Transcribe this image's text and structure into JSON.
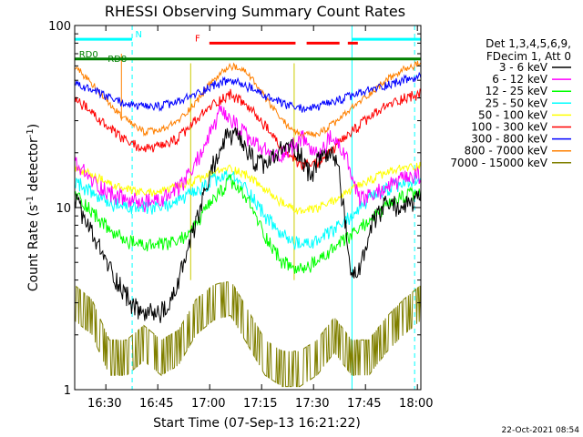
{
  "chart_data": {
    "type": "line",
    "title": "RHESSI Observing Summary Count Rates",
    "xlabel": "Start Time (07-Sep-13 16:21:22)",
    "ylabel": "Count Rate (s^-1 detector^-1)",
    "ylabel_main": "Count Rate (s",
    "ylabel_sup1": "-1",
    "ylabel_mid": " detector",
    "ylabel_sup2": "-1",
    "ylabel_end": ")",
    "yscale": "log",
    "ylim": [
      1,
      100
    ],
    "xlim_minutes": [
      0,
      100
    ],
    "x_tick_minutes": [
      8.63,
      23.63,
      38.63,
      53.63,
      68.63,
      83.63,
      98.63
    ],
    "x_tick_labels": [
      "16:30",
      "16:45",
      "17:00",
      "17:15",
      "17:30",
      "17:45",
      "18:00"
    ],
    "y_tick_values": [
      1,
      10,
      100
    ],
    "y_tick_labels": [
      "1",
      "10",
      "100"
    ],
    "legend_header": [
      "Det 1,3,4,5,6,9,",
      "FDecim 1, Att 0"
    ],
    "series": [
      {
        "name": "3 - 6 keV",
        "color": "#000000",
        "noise": 0.06,
        "x": [
          0,
          3,
          7,
          12,
          18,
          22,
          27,
          30,
          35,
          40,
          44,
          47,
          50,
          53,
          56,
          59,
          62,
          65,
          68,
          72,
          76,
          80,
          83,
          86,
          90,
          94,
          97,
          100
        ],
        "y": [
          11,
          8.5,
          6,
          4,
          2.7,
          2.6,
          2.7,
          4,
          8,
          17,
          25,
          24,
          20,
          17,
          17.5,
          20,
          22,
          20,
          15,
          20,
          18,
          4,
          5,
          8,
          10.5,
          10,
          10.5,
          11
        ]
      },
      {
        "name": "6 - 12 keV",
        "color": "#ff00ff",
        "noise": 0.05,
        "x": [
          0,
          5,
          10,
          15,
          20,
          25,
          30,
          34,
          38,
          42,
          46,
          50,
          54,
          58,
          62,
          66,
          70,
          74,
          78,
          82,
          86,
          90,
          94,
          100
        ],
        "y": [
          17.5,
          14,
          12,
          11,
          10.5,
          11,
          12.5,
          16,
          23,
          33,
          29,
          24,
          21,
          19,
          21,
          24,
          19,
          24,
          20,
          11,
          11.5,
          13,
          14,
          15
        ]
      },
      {
        "name": "12 - 25 keV",
        "color": "#00ff00",
        "noise": 0.04,
        "x": [
          0,
          5,
          10,
          15,
          20,
          25,
          30,
          35,
          40,
          45,
          50,
          55,
          60,
          65,
          70,
          75,
          80,
          85,
          90,
          95,
          100
        ],
        "y": [
          12,
          9.5,
          7.5,
          6.5,
          6.2,
          6.2,
          6.5,
          8,
          11,
          14,
          11,
          7,
          5,
          4.5,
          5,
          6,
          7,
          8.5,
          10,
          11.5,
          12
        ]
      },
      {
        "name": "25 - 50 keV",
        "color": "#00ffff",
        "noise": 0.04,
        "x": [
          0,
          5,
          10,
          15,
          20,
          25,
          30,
          35,
          40,
          45,
          50,
          55,
          60,
          65,
          70,
          75,
          80,
          85,
          90,
          95,
          100
        ],
        "y": [
          14,
          12,
          10.5,
          10,
          9.8,
          10,
          11,
          12,
          14,
          15,
          12.5,
          9,
          7,
          6.2,
          6.5,
          7.5,
          9,
          11,
          12.5,
          13.5,
          14
        ]
      },
      {
        "name": "50 - 100 keV",
        "color": "#ffff00",
        "noise": 0.025,
        "x": [
          0,
          5,
          10,
          15,
          20,
          25,
          30,
          35,
          40,
          45,
          50,
          55,
          60,
          65,
          70,
          75,
          80,
          85,
          90,
          95,
          100
        ],
        "y": [
          16.5,
          15,
          13.5,
          12.5,
          12,
          12.3,
          13,
          14,
          15.5,
          16.5,
          15,
          12.5,
          10.5,
          9.5,
          9.8,
          11,
          12.5,
          14,
          15.5,
          16.5,
          17
        ]
      },
      {
        "name": "100 - 300 keV",
        "color": "#ff0000",
        "noise": 0.03,
        "x": [
          0,
          5,
          10,
          15,
          20,
          25,
          30,
          35,
          40,
          45,
          50,
          55,
          60,
          65,
          70,
          75,
          80,
          85,
          90,
          95,
          100
        ],
        "y": [
          40,
          33,
          27,
          23,
          21,
          21.5,
          24,
          30,
          37,
          42,
          36,
          28,
          21,
          17,
          17.5,
          21,
          26,
          31,
          36,
          40,
          42
        ]
      },
      {
        "name": "300 - 800 keV",
        "color": "#0000ff",
        "noise": 0.025,
        "x": [
          0,
          5,
          10,
          15,
          20,
          25,
          30,
          35,
          40,
          45,
          50,
          55,
          60,
          65,
          70,
          75,
          80,
          85,
          90,
          95,
          100
        ],
        "y": [
          48,
          44,
          40,
          37,
          35.5,
          36,
          38,
          42,
          47,
          50,
          46,
          41,
          37,
          35,
          35.5,
          38,
          41,
          44,
          47,
          50,
          52
        ]
      },
      {
        "name": "800 - 7000 keV",
        "color": "#ff8000",
        "noise": 0.02,
        "x": [
          0,
          5,
          10,
          15,
          20,
          25,
          30,
          35,
          40,
          45,
          50,
          55,
          60,
          65,
          70,
          75,
          80,
          85,
          90,
          95,
          100
        ],
        "y": [
          60,
          48,
          37,
          30,
          26,
          26.5,
          30,
          38,
          50,
          60,
          55,
          40,
          30,
          25,
          25,
          29,
          35,
          42,
          50,
          57,
          62
        ]
      },
      {
        "name": "7000 - 15000 keV",
        "color": "#808000",
        "noise": 0,
        "x": [
          0,
          5,
          10,
          15,
          20,
          25,
          30,
          35,
          40,
          45,
          50,
          55,
          60,
          65,
          70,
          75,
          80,
          85,
          90,
          95,
          100
        ],
        "y": [
          3,
          2.5,
          1.5,
          1.5,
          1.8,
          1.5,
          1.7,
          2.5,
          3,
          3.2,
          2.2,
          1.5,
          1.3,
          1.3,
          1.5,
          2,
          1.5,
          1.5,
          2,
          2.5,
          3
        ]
      }
    ],
    "state_bars": [
      {
        "label": "N",
        "color": "#00ffff",
        "y_value": 84,
        "segments": [
          [
            0,
            16.6
          ],
          [
            80.1,
            100
          ]
        ],
        "label_x": 18.5
      },
      {
        "label": "F",
        "color": "#ff0000",
        "y_value": 80,
        "segments": [
          [
            38.9,
            63.8
          ],
          [
            67,
            76.5
          ],
          [
            78.9,
            81.8
          ]
        ],
        "label_x": 35.5
      },
      {
        "label": "RD0",
        "color": "#008000",
        "y_value": 65.5,
        "segments": [
          [
            0,
            100
          ]
        ],
        "label_x": 4
      },
      {
        "label": "RD8",
        "color": "#008000",
        "y_value": 61.5,
        "segments": [],
        "label_x": 12.3
      }
    ],
    "vlines_cyan_dashed": [
      16.6,
      98.2
    ],
    "vlines_cyan_solid": [
      80.1
    ],
    "vlines_yellow": [
      33.5,
      63.4
    ],
    "vlines_orange": [
      13.5
    ],
    "footer_date": "22-Oct-2021 08:54"
  }
}
